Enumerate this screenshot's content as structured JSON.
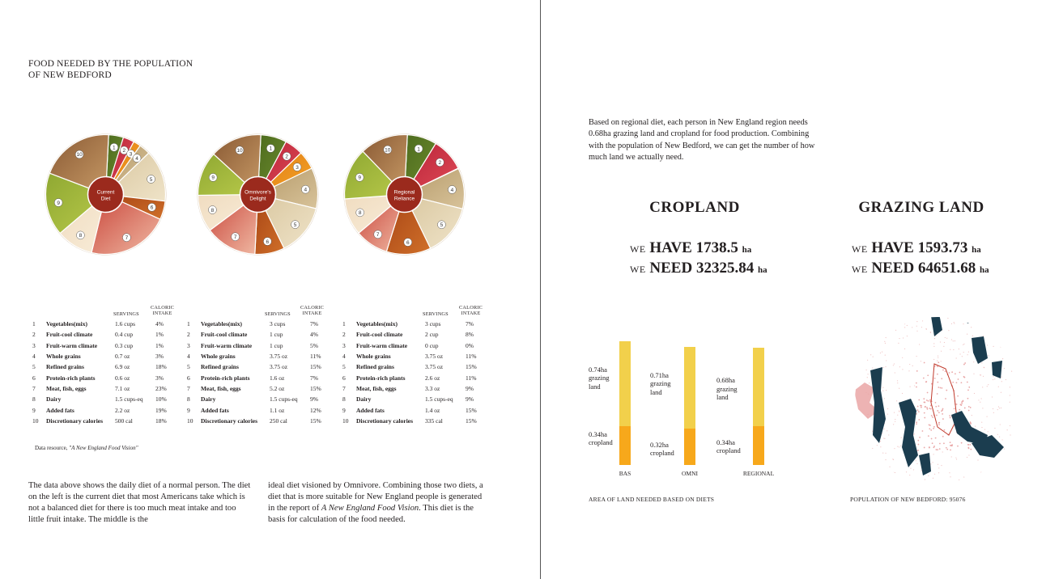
{
  "title_line1": "FOOD NEEDED BY THE POPULATION",
  "title_line2": "OF NEW BEDFORD",
  "pies": [
    {
      "label_line1": "Current",
      "label_line2": "Diet",
      "segments": [
        "1",
        "2",
        "3",
        "4",
        "5",
        "6",
        "7",
        "8",
        "9",
        "10"
      ]
    },
    {
      "label_line1": "Omnivore's",
      "label_line2": "Delight",
      "segments": [
        "1",
        "2",
        "3",
        "4",
        "5",
        "6",
        "7",
        "8",
        "9",
        "10"
      ]
    },
    {
      "label_line1": "Regional",
      "label_line2": "Reliance",
      "segments": [
        "1",
        "2",
        "3",
        "4",
        "5",
        "6",
        "7",
        "8",
        "9",
        "10"
      ]
    }
  ],
  "table_header": {
    "servings": "SERVINGS",
    "caloric_line1": "CALORIC",
    "caloric_line2": "INTAKE"
  },
  "tables": [
    {
      "rows": [
        [
          "1",
          "Vegetables(mix)",
          "1.6 cups",
          "4%"
        ],
        [
          "2",
          "Fruit-cool climate",
          "0.4 cup",
          "1%"
        ],
        [
          "3",
          "Fruit-warm climate",
          "0.3 cup",
          "1%"
        ],
        [
          "4",
          "Whole grains",
          "0.7 oz",
          "3%"
        ],
        [
          "5",
          "Refined grains",
          "6.9 oz",
          "18%"
        ],
        [
          "6",
          "Protein-rich plants",
          "0.6 oz",
          "3%"
        ],
        [
          "7",
          "Meat, fish, eggs",
          "7.1 oz",
          "23%"
        ],
        [
          "8",
          "Dairy",
          "1.5 cups-eq",
          "10%"
        ],
        [
          "9",
          "Added fats",
          "2.2 oz",
          "19%"
        ],
        [
          "10",
          "Discretionary calories",
          "500 cal",
          "18%"
        ]
      ]
    },
    {
      "rows": [
        [
          "1",
          "Vegetables(mix)",
          "3 cups",
          "7%"
        ],
        [
          "2",
          "Fruit-cool climate",
          "1 cup",
          "4%"
        ],
        [
          "3",
          "Fruit-warm climate",
          "1 cup",
          "5%"
        ],
        [
          "4",
          "Whole grains",
          "3.75 oz",
          "11%"
        ],
        [
          "5",
          "Refined grains",
          "3.75 oz",
          "15%"
        ],
        [
          "6",
          "Protein-rich plants",
          "1.6 oz",
          "7%"
        ],
        [
          "7",
          "Meat, fish, eggs",
          "5.2 oz",
          "15%"
        ],
        [
          "8",
          "Dairy",
          "1.5 cups-eq",
          "9%"
        ],
        [
          "9",
          "Added fats",
          "1.1 oz",
          "12%"
        ],
        [
          "10",
          "Discretionary calories",
          "250 cal",
          "15%"
        ]
      ]
    },
    {
      "rows": [
        [
          "1",
          "Vegetables(mix)",
          "3 cups",
          "7%"
        ],
        [
          "2",
          "Fruit-cool climate",
          "2 cup",
          "8%"
        ],
        [
          "3",
          "Fruit-warm climate",
          "0 cup",
          "0%"
        ],
        [
          "4",
          "Whole grains",
          "3.75 oz",
          "11%"
        ],
        [
          "5",
          "Refined grains",
          "3.75 oz",
          "15%"
        ],
        [
          "6",
          "Protein-rich plants",
          "2.6 oz",
          "11%"
        ],
        [
          "7",
          "Meat, fish, eggs",
          "3.3 oz",
          "9%"
        ],
        [
          "8",
          "Dairy",
          "1.5 cups-eq",
          "9%"
        ],
        [
          "9",
          "Added fats",
          "1.4 oz",
          "15%"
        ],
        [
          "10",
          "Discretionary calories",
          "335 cal",
          "15%"
        ]
      ]
    }
  ],
  "source_prefix": "Data resource, ",
  "source_title": "\"A New England Food Vision\"",
  "para_left": "The data above shows the daily diet of a normal person. The diet on the left is the current diet that most Americans take which is not a balanced diet for there is too much meat intake and too little fruit intake. The middle is the",
  "para_right_1": "ideal diet visioned by Omnivore. Combining those two diets, a diet that is more suitable for New England people is generated in the report of ",
  "para_right_italic": "A New England Food Vision",
  "para_right_2": ". This diet is the basis for calculation of the food needed.",
  "intro": "Based on regional diet, each person in New England region needs 0.68ha grazing land and cropland for food production. Combining with the population of New Bedford, we can get the number of how much land we actually need.",
  "cropland": {
    "heading": "CROPLAND",
    "we": "WE",
    "have_word": "HAVE",
    "have_value": "1738.5",
    "need_word": "NEED",
    "need_value": "32325.84",
    "unit": "ha"
  },
  "grazing": {
    "heading": "GRAZING LAND",
    "we": "WE",
    "have_word": "HAVE",
    "have_value": "1593.73",
    "need_word": "NEED",
    "need_value": "64651.68",
    "unit": "ha"
  },
  "chart_data": {
    "type": "bar",
    "stacked": true,
    "categories": [
      "BAS",
      "OMNI",
      "REGIONAL"
    ],
    "series": [
      {
        "name": "cropland",
        "values": [
          0.34,
          0.32,
          0.34
        ],
        "labels": [
          "0.34ha cropland",
          "0.32ha cropland",
          "0.34ha cropland"
        ],
        "color": "#f7a81b"
      },
      {
        "name": "grazing land",
        "values": [
          0.74,
          0.71,
          0.68
        ],
        "labels": [
          "0.74ha grazing land",
          "0.71ha grazing land",
          "0.68ha grazing land"
        ],
        "color": "#f2d04b"
      }
    ],
    "caption": "AREA OF LAND NEEDED BASED ON DIETS"
  },
  "map_caption": "POPULATION OF NEW BEDFORD: 95076",
  "colors": {
    "cropland": "#f7a81b",
    "grazing": "#f2d04b",
    "pie_center": "#9b2a1d",
    "map_water": "#1b3d4f",
    "map_pop": "#e8a0a0"
  }
}
